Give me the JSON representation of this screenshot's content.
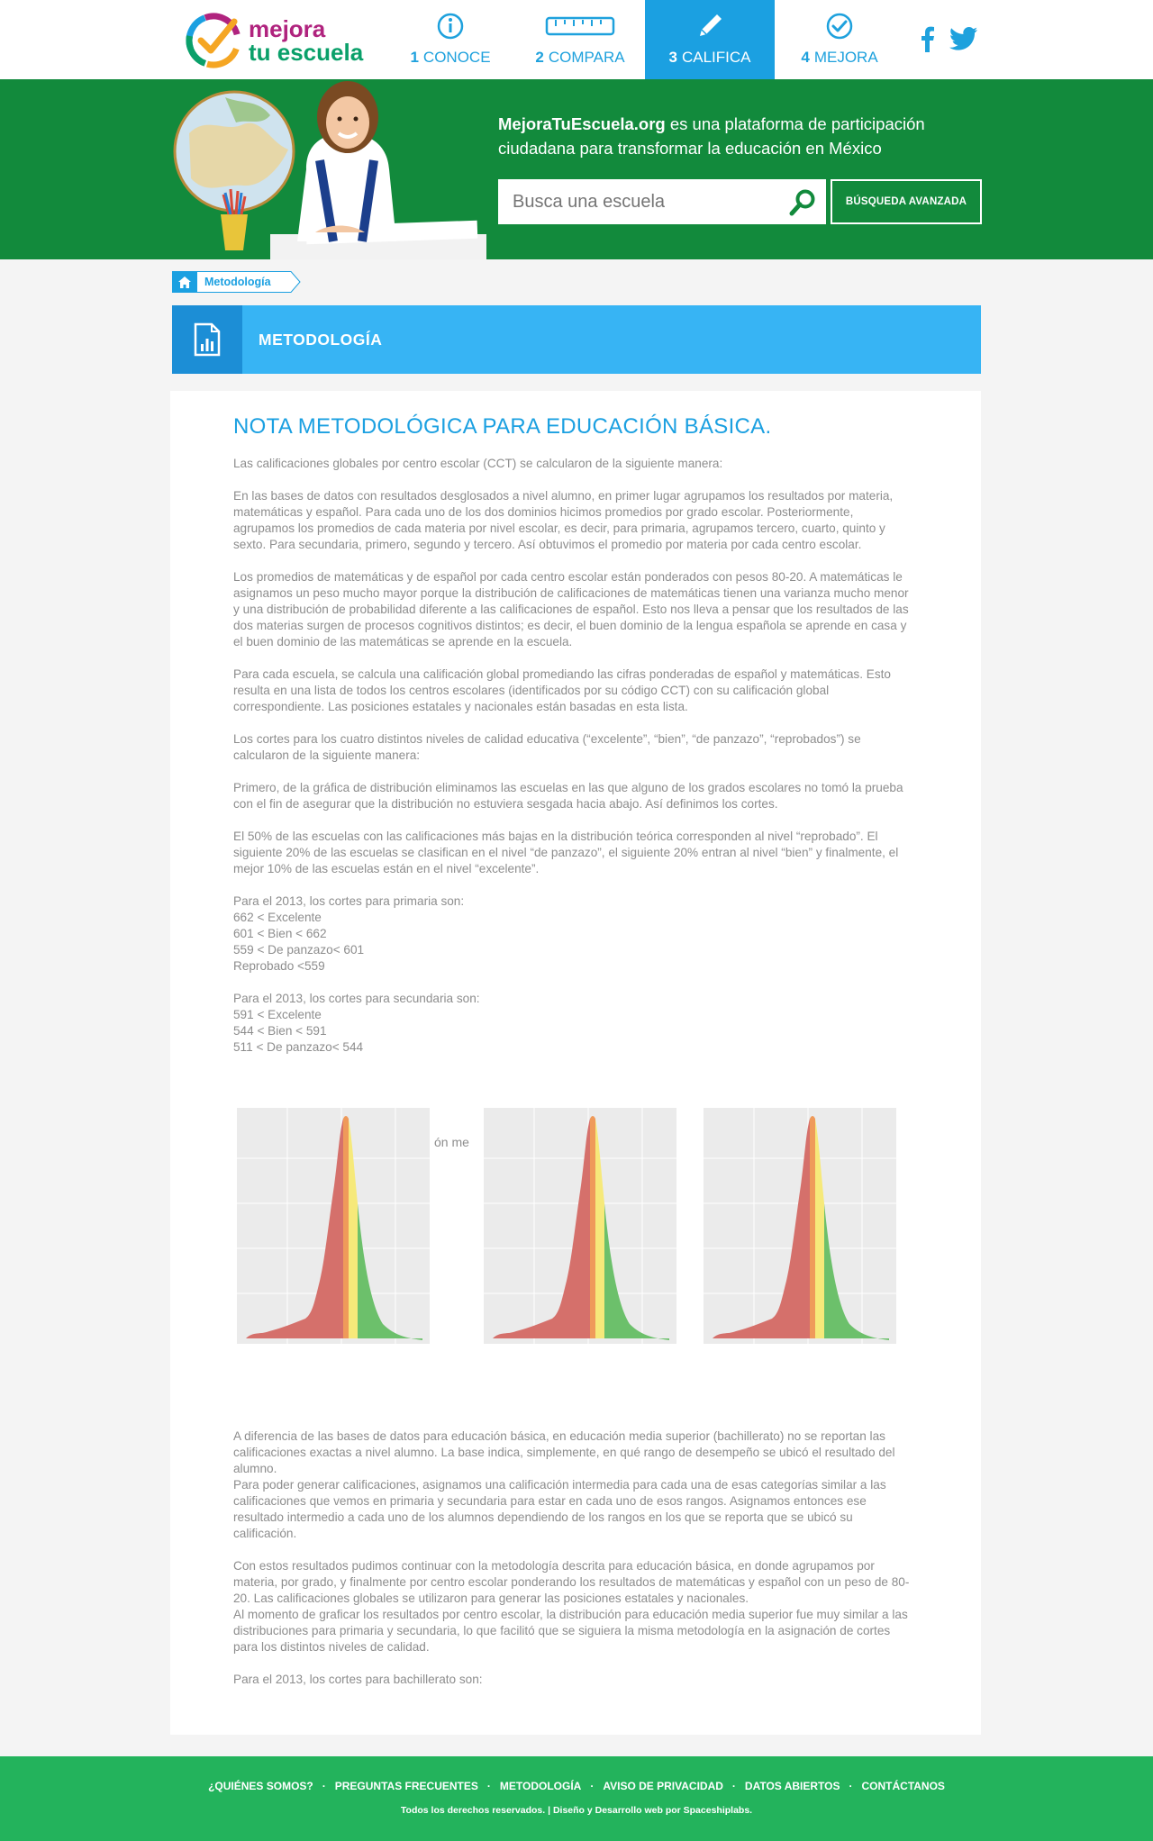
{
  "header": {
    "logo": {
      "line1": "mejora",
      "line2": "tu escuela"
    },
    "nav": [
      {
        "num": "1",
        "label": "CONOCE",
        "icon": "info-icon"
      },
      {
        "num": "2",
        "label": "COMPARA",
        "icon": "ruler-icon"
      },
      {
        "num": "3",
        "label": "CALIFICA",
        "icon": "pencil-icon",
        "active": true
      },
      {
        "num": "4",
        "label": "MEJORA",
        "icon": "check-circle-icon"
      }
    ],
    "social": [
      "facebook-icon",
      "twitter-icon"
    ]
  },
  "hero": {
    "brand": "MejoraTuEscuela.org",
    "tagline": " es una plataforma de participación ciudadana para transformar la educación en México",
    "search_placeholder": "Busca una escuela",
    "advanced_label": "BÚSQUEDA AVANZADA"
  },
  "breadcrumb": {
    "label": "Metodología"
  },
  "banner": {
    "title": "METODOLOGÍA"
  },
  "content": {
    "title": "NOTA METODOLÓGICA PARA EDUCACIÓN BÁSICA.",
    "paragraphs": [
      "Las calificaciones globales por centro escolar (CCT) se calcularon de la siguiente manera:",
      "En las bases de datos con resultados desglosados a nivel alumno, en primer lugar agrupamos los resultados por materia, matemáticas y español. Para cada uno de los dos dominios hicimos promedios por grado escolar. Posteriormente, agrupamos los promedios de cada materia por nivel escolar, es decir, para primaria, agrupamos tercero, cuarto, quinto y sexto. Para secundaria, primero, segundo y tercero. Así obtuvimos el promedio por materia por cada centro escolar.",
      "Los promedios de matemáticas y de español por cada centro escolar están ponderados con pesos 80-20. A matemáticas le asignamos un peso mucho mayor porque la distribución de calificaciones de matemáticas tienen una varianza mucho menor y una distribución de probabilidad diferente a las calificaciones de español. Esto nos lleva a pensar que los resultados de las dos materias surgen de procesos cognitivos distintos; es decir, el buen dominio de la lengua española se aprende en casa y el buen dominio de las matemáticas se aprende en la escuela.",
      "Para cada escuela, se calcula una calificación global promediando las cifras ponderadas de español y matemáticas. Esto resulta en una lista de todos los centros escolares (identificados por su código CCT) con su calificación global correspondiente. Las posiciones estatales y nacionales están basadas en esta lista.",
      "Los cortes para los cuatro distintos niveles de calidad educativa (“excelente”, “bien”, “de panzazo”, “reprobados”) se calcularon de la siguiente manera:",
      " Primero, de la gráfica de distribución eliminamos las escuelas en las que alguno de los grados escolares no tomó la prueba con el fin de asegurar que la distribución no estuviera sesgada hacia abajo. Así definimos los cortes.",
      "El 50% de las escuelas con las calificaciones más bajas en la distribución teórica corresponden al nivel “reprobado”. El siguiente 20% de las escuelas se clasifican en el nivel “de panzazo”, el siguiente 20% entran al nivel “bien” y finalmente, el mejor 10% de las escuelas están en el nivel “excelente”."
    ],
    "primaria": {
      "heading": "Para el 2013, los cortes para primaria son:",
      "lines": [
        "662 < Excelente",
        "601 < Bien < 662",
        "559 < De panzazo< 601",
        "Reprobado <559"
      ]
    },
    "secundaria": {
      "heading": "Para el 2013, los cortes para secundaria son:",
      "lines": [
        "591 < Excelente",
        "544 < Bien < 591",
        "511 < De panzazo< 544"
      ]
    },
    "peek_text": "ón me",
    "paragraphs2": [
      "A diferencia de las bases de datos para educación básica, en educación media superior (bachillerato) no se reportan las calificaciones exactas a nivel alumno. La base indica, simplemente, en qué rango de desempeño se ubicó el resultado del alumno.",
      "Para poder generar calificaciones, asignamos una calificación intermedia para cada una de esas categorías similar a las calificaciones que vemos en primaria y secundaria para estar en cada uno de esos rangos. Asignamos entonces ese resultado intermedio a cada uno de los alumnos dependiendo de los rangos en los que se reporta que se ubicó su calificación.",
      "",
      " Con estos resultados pudimos continuar con la metodología descrita para educación básica, en donde agrupamos por materia, por grado, y finalmente por centro escolar ponderando los resultados de matemáticas y español con un peso de 80-20. Las calificaciones globales se utilizaron para generar las posiciones estatales y nacionales.",
      " Al momento de graficar los resultados por centro escolar, la distribución para educación media superior fue muy similar a las distribuciones para primaria y secundaria, lo que facilitó que se siguiera la misma metodología en la asignación de cortes para los distintos niveles de calidad.",
      "",
      "Para el 2013, los cortes para bachillerato son:"
    ],
    "band_colors": {
      "reprobado": "#d5706b",
      "panzazo": "#ef9a5a",
      "bien": "#f6e97a",
      "excelente": "#6cc06b"
    }
  },
  "footer": {
    "links": [
      "¿QUIÉNES SOMOS?",
      "PREGUNTAS FRECUENTES",
      "METODOLOGÍA",
      "AVISO DE PRIVACIDAD",
      "DATOS ABIERTOS",
      "CONTÁCTANOS"
    ],
    "copyright": "Todos los derechos reservados. | Diseño y Desarrollo web por Spaceshiplabs."
  }
}
